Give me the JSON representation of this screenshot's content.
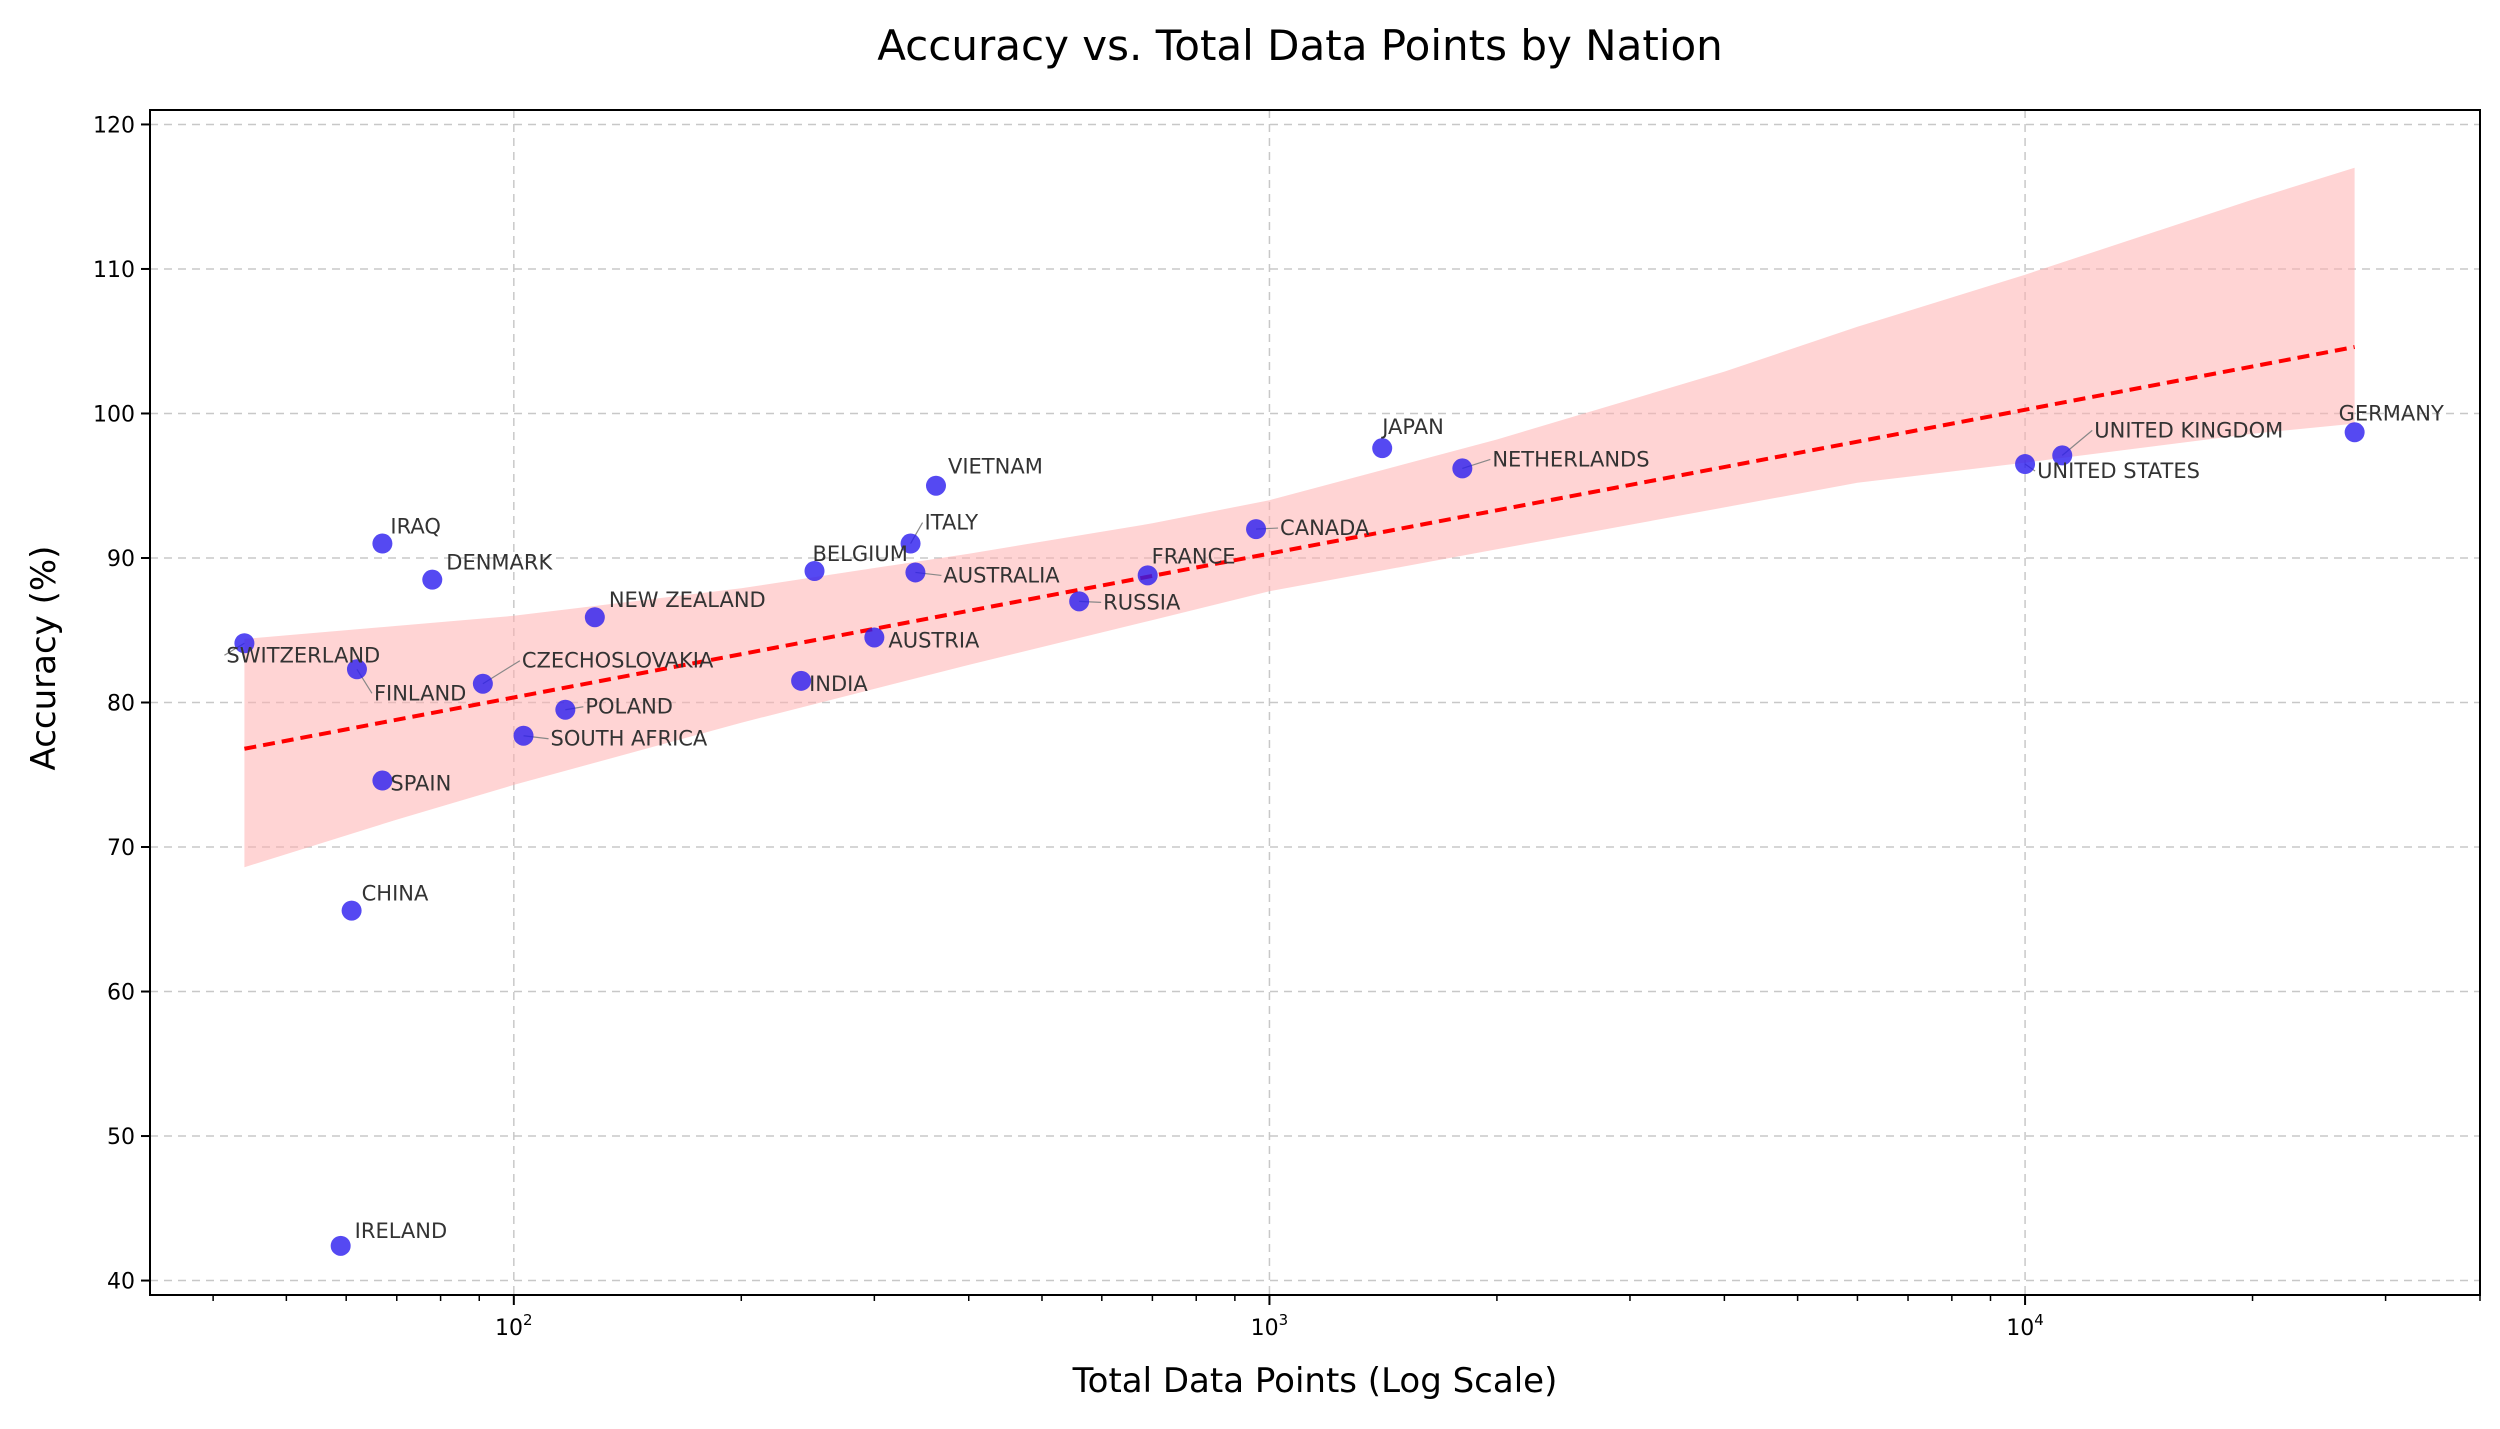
{
  "chart_data": {
    "type": "scatter",
    "title": "Accuracy vs. Total Data Points by Nation",
    "xlabel": "Total Data Points (Log Scale)",
    "ylabel": "Accuracy (%)",
    "x_scale": "log",
    "xlim": [
      33,
      40000
    ],
    "ylim": [
      39,
      121
    ],
    "yticks": [
      40,
      50,
      60,
      70,
      80,
      90,
      100,
      110,
      120
    ],
    "xticks_major": [
      {
        "value": 100,
        "base": "10",
        "exp": "2"
      },
      {
        "value": 1000,
        "base": "10",
        "exp": "3"
      },
      {
        "value": 10000,
        "base": "10",
        "exp": "4"
      }
    ],
    "grid": true,
    "point_color": "#2a1bef",
    "trend_color": "#ff0000",
    "band_color": "#ffb0b0",
    "trend_line": {
      "x": [
        44,
        27300
      ],
      "y": [
        76.8,
        104.6
      ]
    },
    "confidence_band": {
      "x": [
        44,
        70,
        100,
        200,
        400,
        700,
        1000,
        2000,
        4000,
        6000,
        10000,
        20000,
        27300
      ],
      "upper": [
        84.4,
        85.3,
        86.0,
        87.9,
        90.3,
        92.4,
        94.0,
        98.2,
        102.9,
        106.0,
        109.6,
        114.8,
        117.0
      ],
      "lower": [
        68.6,
        71.9,
        74.3,
        78.6,
        82.6,
        85.7,
        87.7,
        90.6,
        93.5,
        95.2,
        96.6,
        98.6,
        99.3
      ]
    },
    "points": [
      {
        "name": "GERMANY",
        "x": 27300,
        "y": 98.7
      },
      {
        "name": "UNITED KINGDOM",
        "x": 11200,
        "y": 97.1
      },
      {
        "name": "UNITED STATES",
        "x": 10000,
        "y": 96.5
      },
      {
        "name": "JAPAN",
        "x": 1410,
        "y": 97.6
      },
      {
        "name": "NETHERLANDS",
        "x": 1800,
        "y": 96.2
      },
      {
        "name": "VIETNAM",
        "x": 362,
        "y": 95.0
      },
      {
        "name": "CANADA",
        "x": 960,
        "y": 92.0
      },
      {
        "name": "ITALY",
        "x": 335,
        "y": 91.0
      },
      {
        "name": "IRAQ",
        "x": 67,
        "y": 91.0
      },
      {
        "name": "BELGIUM",
        "x": 250,
        "y": 89.1
      },
      {
        "name": "AUSTRALIA",
        "x": 340,
        "y": 89.0
      },
      {
        "name": "FRANCE",
        "x": 690,
        "y": 88.8
      },
      {
        "name": "DENMARK",
        "x": 78,
        "y": 88.5
      },
      {
        "name": "RUSSIA",
        "x": 560,
        "y": 87.0
      },
      {
        "name": "NEW ZEALAND",
        "x": 128,
        "y": 85.9
      },
      {
        "name": "AUSTRIA",
        "x": 300,
        "y": 84.5
      },
      {
        "name": "SWITZERLAND",
        "x": 44,
        "y": 84.1
      },
      {
        "name": "FINLAND",
        "x": 62,
        "y": 82.3
      },
      {
        "name": "INDIA",
        "x": 240,
        "y": 81.5
      },
      {
        "name": "CZECHOSLOVAKIA",
        "x": 91,
        "y": 81.3
      },
      {
        "name": "POLAND",
        "x": 117,
        "y": 79.5
      },
      {
        "name": "SOUTH AFRICA",
        "x": 103,
        "y": 77.7
      },
      {
        "name": "SPAIN",
        "x": 67,
        "y": 74.6
      },
      {
        "name": "CHINA",
        "x": 61,
        "y": 65.6
      },
      {
        "name": "IRELAND",
        "x": 59,
        "y": 42.4
      }
    ]
  }
}
